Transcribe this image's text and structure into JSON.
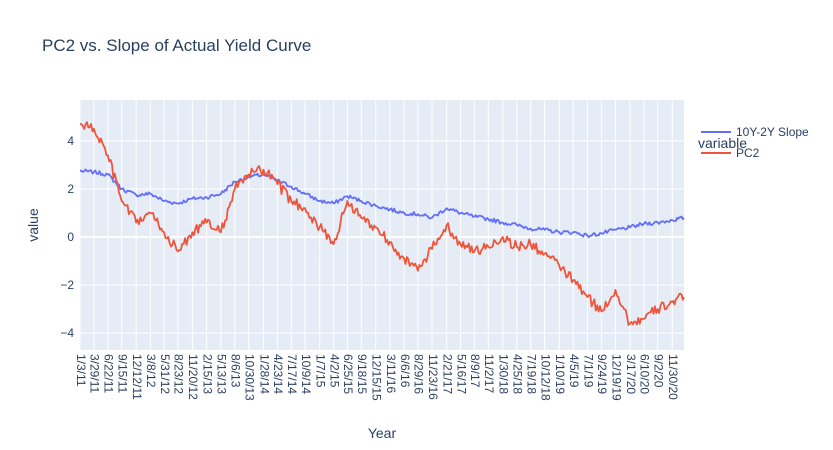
{
  "chart_data": {
    "type": "line",
    "title": "PC2 vs. Slope of Actual Yield Curve",
    "xlabel": "Year",
    "ylabel": "value",
    "legend_title": "variable",
    "legend_position": "top-right",
    "grid": true,
    "ylim": [
      -4.7,
      5.7
    ],
    "x_ticks": [
      "1/3/11",
      "3/29/11",
      "6/22/11",
      "9/15/11",
      "12/12/11",
      "3/8/12",
      "5/31/12",
      "8/23/12",
      "11/20/12",
      "2/15/13",
      "5/13/13",
      "8/6/13",
      "10/30/13",
      "1/28/14",
      "4/23/14",
      "7/17/14",
      "10/9/14",
      "1/7/15",
      "4/2/15",
      "6/25/15",
      "9/18/15",
      "12/15/15",
      "3/11/16",
      "6/6/16",
      "8/29/16",
      "11/23/16",
      "2/21/17",
      "5/16/17",
      "8/9/17",
      "11/2/17",
      "1/30/18",
      "4/25/18",
      "7/19/18",
      "10/12/18",
      "1/10/19",
      "4/5/19",
      "7/1/19",
      "9/24/19",
      "12/19/19",
      "3/17/20",
      "6/10/20",
      "9/2/20",
      "11/30/20"
    ],
    "y_ticks": [
      4,
      2,
      0,
      -2,
      -4
    ],
    "x": [
      "1/3/11",
      "3/29/11",
      "6/22/11",
      "9/15/11",
      "12/12/11",
      "3/8/12",
      "5/31/12",
      "8/23/12",
      "11/20/12",
      "2/15/13",
      "5/13/13",
      "8/6/13",
      "10/30/13",
      "1/28/14",
      "4/23/14",
      "7/17/14",
      "10/9/14",
      "1/7/15",
      "4/2/15",
      "6/25/15",
      "9/18/15",
      "12/15/15",
      "3/11/16",
      "6/6/16",
      "8/29/16",
      "11/23/16",
      "2/21/17",
      "5/16/17",
      "8/9/17",
      "11/2/17",
      "1/30/18",
      "4/25/18",
      "7/19/18",
      "10/12/18",
      "1/10/19",
      "4/5/19",
      "7/1/19",
      "9/24/19",
      "12/19/19",
      "3/17/20",
      "6/10/20",
      "9/2/20",
      "11/30/20",
      "2/10/21"
    ],
    "series": [
      {
        "name": "10Y-2Y Slope",
        "color": "#636efa",
        "values": [
          2.75,
          2.7,
          2.6,
          2.0,
          1.75,
          1.8,
          1.5,
          1.4,
          1.6,
          1.65,
          1.8,
          2.3,
          2.5,
          2.6,
          2.35,
          2.1,
          1.8,
          1.5,
          1.4,
          1.7,
          1.5,
          1.3,
          1.15,
          1.0,
          0.95,
          0.8,
          1.2,
          1.0,
          0.85,
          0.75,
          0.6,
          0.5,
          0.35,
          0.3,
          0.2,
          0.2,
          0.05,
          0.15,
          0.3,
          0.4,
          0.55,
          0.6,
          0.7,
          0.8
        ]
      },
      {
        "name": "PC2",
        "color": "#ef553b",
        "values": [
          4.7,
          4.5,
          3.4,
          1.5,
          0.6,
          1.0,
          0.2,
          -0.6,
          0.2,
          0.6,
          0.2,
          2.0,
          2.6,
          2.8,
          2.2,
          1.5,
          1.2,
          0.4,
          -0.3,
          1.5,
          0.8,
          0.4,
          -0.2,
          -0.9,
          -1.4,
          -0.5,
          0.5,
          -0.3,
          -0.6,
          -0.4,
          0.0,
          -0.4,
          -0.3,
          -0.7,
          -1.2,
          -1.8,
          -2.5,
          -3.1,
          -2.2,
          -3.6,
          -3.4,
          -3.0,
          -2.7,
          -2.5
        ]
      }
    ]
  }
}
